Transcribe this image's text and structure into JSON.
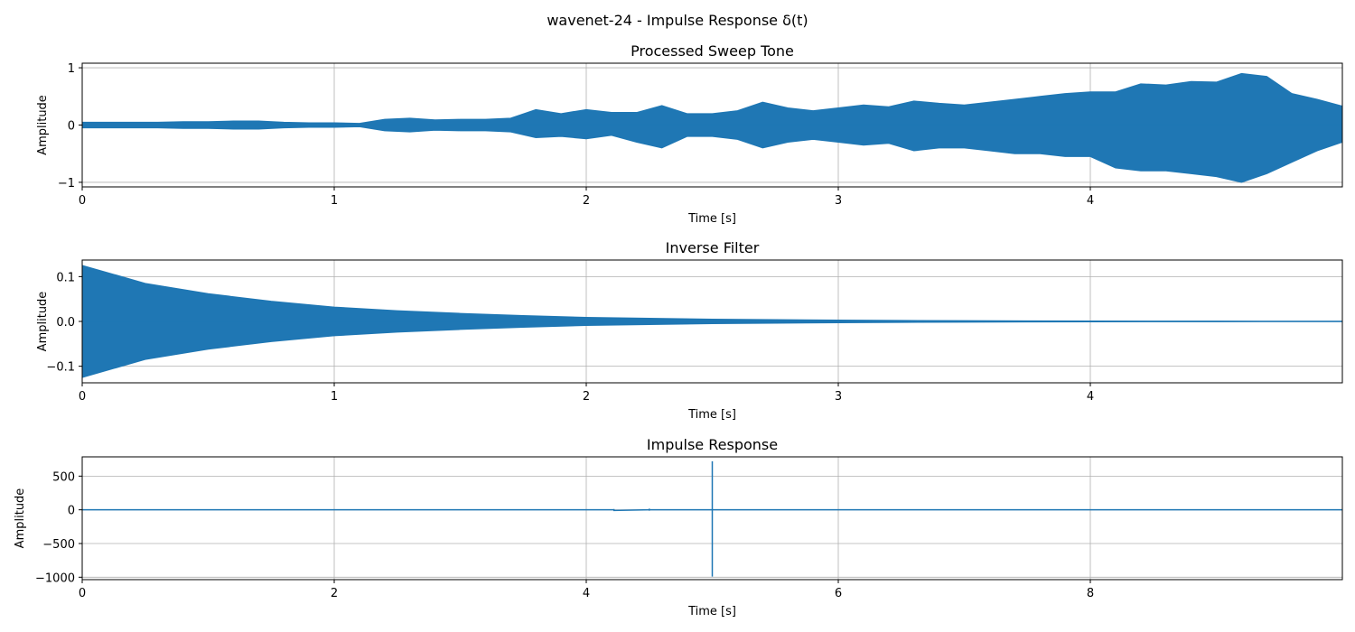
{
  "figure": {
    "title": "wavenet-24 - Impulse Response δ(t)",
    "series_color": "#1f77b4"
  },
  "chart_data": [
    {
      "type": "line",
      "title": "Processed Sweep Tone",
      "xlabel": "Time [s]",
      "ylabel": "Amplitude",
      "xlim": [
        0,
        5.0
      ],
      "ylim": [
        -1.08,
        1.08
      ],
      "xticks": [
        0,
        1,
        2,
        3,
        4
      ],
      "xtick_labels": [
        "0",
        "1",
        "2",
        "3",
        "4"
      ],
      "yticks": [
        -1,
        0,
        1
      ],
      "ytick_labels": [
        "−1",
        "0",
        "1"
      ],
      "grid": true,
      "envelope": {
        "t": [
          0,
          0.1,
          0.2,
          0.3,
          0.4,
          0.5,
          0.6,
          0.7,
          0.8,
          0.9,
          1.0,
          1.1,
          1.2,
          1.3,
          1.4,
          1.5,
          1.6,
          1.7,
          1.8,
          1.9,
          2.0,
          2.1,
          2.2,
          2.3,
          2.4,
          2.5,
          2.6,
          2.7,
          2.8,
          2.9,
          3.0,
          3.1,
          3.2,
          3.3,
          3.4,
          3.5,
          3.6,
          3.7,
          3.8,
          3.9,
          4.0,
          4.1,
          4.2,
          4.3,
          4.4,
          4.5,
          4.6,
          4.7,
          4.8,
          4.9,
          5.0
        ],
        "upper": [
          0.05,
          0.05,
          0.05,
          0.05,
          0.06,
          0.06,
          0.07,
          0.07,
          0.05,
          0.04,
          0.04,
          0.03,
          0.1,
          0.12,
          0.09,
          0.1,
          0.1,
          0.12,
          0.27,
          0.2,
          0.27,
          0.22,
          0.22,
          0.34,
          0.2,
          0.2,
          0.25,
          0.4,
          0.3,
          0.25,
          0.3,
          0.35,
          0.32,
          0.42,
          0.38,
          0.35,
          0.4,
          0.45,
          0.5,
          0.55,
          0.58,
          0.58,
          0.72,
          0.7,
          0.76,
          0.75,
          0.9,
          0.85,
          0.55,
          0.45,
          0.33
        ],
        "lower": [
          -0.05,
          -0.05,
          -0.05,
          -0.05,
          -0.06,
          -0.06,
          -0.07,
          -0.07,
          -0.05,
          -0.04,
          -0.04,
          -0.03,
          -0.1,
          -0.12,
          -0.09,
          -0.1,
          -0.1,
          -0.12,
          -0.22,
          -0.2,
          -0.24,
          -0.18,
          -0.3,
          -0.4,
          -0.2,
          -0.2,
          -0.25,
          -0.4,
          -0.3,
          -0.25,
          -0.3,
          -0.35,
          -0.32,
          -0.45,
          -0.4,
          -0.4,
          -0.45,
          -0.5,
          -0.5,
          -0.55,
          -0.55,
          -0.75,
          -0.8,
          -0.8,
          -0.85,
          -0.9,
          -1.0,
          -0.85,
          -0.65,
          -0.45,
          -0.3
        ]
      }
    },
    {
      "type": "line",
      "title": "Inverse Filter",
      "xlabel": "Time [s]",
      "ylabel": "Amplitude",
      "xlim": [
        0,
        5.0
      ],
      "ylim": [
        -0.137,
        0.137
      ],
      "xticks": [
        0,
        1,
        2,
        3,
        4
      ],
      "xtick_labels": [
        "0",
        "1",
        "2",
        "3",
        "4"
      ],
      "yticks": [
        -0.1,
        0.0,
        0.1
      ],
      "ytick_labels": [
        "−0.1",
        "0.0",
        "0.1"
      ],
      "grid": true,
      "envelope": {
        "t": [
          0,
          0.25,
          0.5,
          0.75,
          1.0,
          1.25,
          1.5,
          1.75,
          2.0,
          2.25,
          2.5,
          2.75,
          3.0,
          3.25,
          3.5,
          3.75,
          4.0,
          4.5,
          5.0
        ],
        "upper": [
          0.125,
          0.085,
          0.062,
          0.045,
          0.032,
          0.024,
          0.018,
          0.013,
          0.009,
          0.007,
          0.005,
          0.004,
          0.003,
          0.0022,
          0.0017,
          0.0013,
          0.001,
          0.0007,
          0.0005
        ],
        "lower": [
          -0.125,
          -0.085,
          -0.062,
          -0.045,
          -0.032,
          -0.024,
          -0.018,
          -0.013,
          -0.009,
          -0.007,
          -0.005,
          -0.004,
          -0.003,
          -0.0022,
          -0.0017,
          -0.0013,
          -0.001,
          -0.0007,
          -0.0005
        ]
      }
    },
    {
      "type": "line",
      "title": "Impulse Response",
      "xlabel": "Time [s]",
      "ylabel": "Amplitude",
      "xlim": [
        0,
        10.0
      ],
      "ylim": [
        -1036,
        786
      ],
      "xticks": [
        0,
        2,
        4,
        6,
        8
      ],
      "xtick_labels": [
        "0",
        "2",
        "4",
        "6",
        "8"
      ],
      "yticks": [
        -1000,
        -500,
        0,
        500
      ],
      "ytick_labels": [
        "−1000",
        "−500",
        "0",
        "500"
      ],
      "grid": true,
      "x": [
        0,
        4.22,
        4.22,
        4.22,
        4.5,
        4.5,
        4.5,
        4.5,
        5.0,
        5.0,
        5.0,
        5.0,
        5.0,
        10.0
      ],
      "y": [
        0,
        0,
        12,
        -10,
        0,
        18,
        -14,
        0,
        0,
        720,
        -990,
        15,
        0,
        0
      ]
    }
  ]
}
